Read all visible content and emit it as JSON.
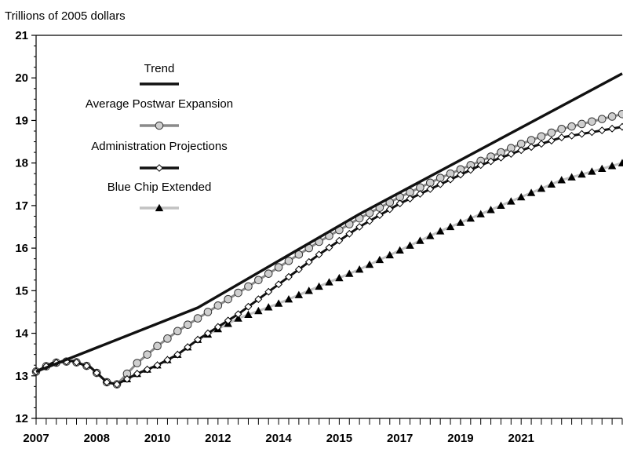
{
  "chart_data": {
    "type": "line",
    "ylabel": "Trillions of 2005 dollars",
    "ylim": [
      12,
      21
    ],
    "yticks": [
      "12",
      "13",
      "14",
      "15",
      "16",
      "17",
      "18",
      "19",
      "20",
      "21"
    ],
    "xlim": [
      2007.0,
      2021.5
    ],
    "xticks": [
      {
        "label": "2007",
        "value": 2007.0
      },
      {
        "label": "2008",
        "value": 2008.5
      },
      {
        "label": "2010",
        "value": 2010.0
      },
      {
        "label": "2012",
        "value": 2011.5
      },
      {
        "label": "2014",
        "value": 2013.0
      },
      {
        "label": "2015",
        "value": 2014.5
      },
      {
        "label": "2017",
        "value": 2016.0
      },
      {
        "label": "2019",
        "value": 2017.5
      },
      {
        "label": "2021",
        "value": 2019.0
      }
    ],
    "grid": false,
    "legend": "upper-left, inside plot",
    "series": [
      {
        "name": "Trend",
        "color": "#111111",
        "marker": "none",
        "x": [
          2007.0,
          2011.0,
          2015.0,
          2021.5
        ],
        "y": [
          13.1,
          14.6,
          16.8,
          20.1
        ]
      },
      {
        "name": "Average Postwar Expansion",
        "color": "#8a8a8a",
        "marker": "circle",
        "x": [
          2007.0,
          2007.4,
          2007.9,
          2008.35,
          2008.75,
          2009.0,
          2009.15,
          2009.5,
          2010.0,
          2010.5,
          2011.0,
          2012.0,
          2013.0,
          2014.0,
          2015.0,
          2016.0,
          2017.0,
          2018.0,
          2019.0,
          2020.0,
          2021.5
        ],
        "y": [
          13.1,
          13.3,
          13.35,
          13.2,
          12.85,
          12.8,
          12.95,
          13.3,
          13.7,
          14.05,
          14.35,
          14.95,
          15.55,
          16.15,
          16.7,
          17.2,
          17.65,
          18.05,
          18.45,
          18.8,
          19.15
        ]
      },
      {
        "name": "Administration Projections",
        "color": "#111111",
        "marker": "diamond",
        "x": [
          2007.0,
          2007.4,
          2007.9,
          2008.35,
          2008.75,
          2009.0,
          2009.5,
          2010.0,
          2010.5,
          2011.0,
          2012.0,
          2013.0,
          2014.0,
          2015.0,
          2016.0,
          2017.0,
          2018.0,
          2019.0,
          2020.0,
          2021.5
        ],
        "y": [
          13.1,
          13.3,
          13.35,
          13.2,
          12.85,
          12.8,
          13.05,
          13.25,
          13.5,
          13.85,
          14.45,
          15.15,
          15.85,
          16.5,
          17.05,
          17.5,
          17.95,
          18.3,
          18.6,
          18.85
        ]
      },
      {
        "name": "Blue Chip Extended",
        "color": "#c2c2c2",
        "marker": "triangle",
        "x": [
          2007.0,
          2007.4,
          2007.9,
          2008.35,
          2008.75,
          2009.0,
          2009.5,
          2010.0,
          2010.5,
          2011.0,
          2012.0,
          2013.0,
          2014.0,
          2015.0,
          2016.0,
          2017.0,
          2018.0,
          2019.0,
          2020.0,
          2021.5
        ],
        "y": [
          13.1,
          13.3,
          13.35,
          13.2,
          12.85,
          12.8,
          13.05,
          13.25,
          13.5,
          13.85,
          14.35,
          14.7,
          15.1,
          15.5,
          15.95,
          16.4,
          16.8,
          17.2,
          17.6,
          18.0
        ]
      }
    ]
  }
}
